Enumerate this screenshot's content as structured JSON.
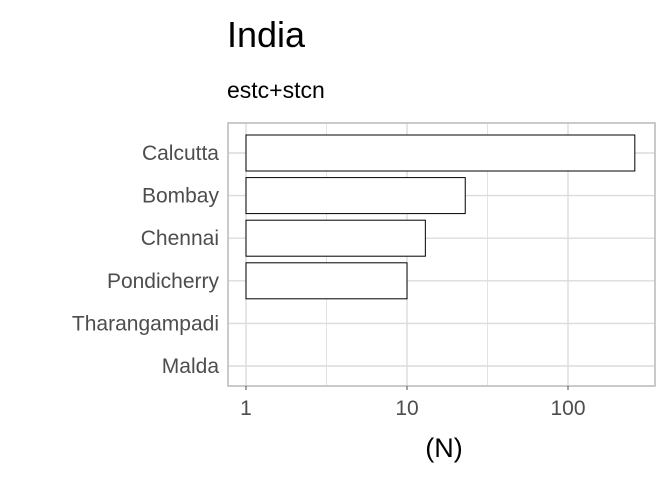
{
  "chart_data": {
    "type": "bar",
    "orientation": "horizontal",
    "title": "India",
    "subtitle": "estc+stcn",
    "xlabel": "(N)",
    "ylabel": "",
    "x_scale": "log10",
    "xlim": [
      0.8,
      320
    ],
    "x_ticks": [
      "1",
      "10",
      "100"
    ],
    "x_tick_values": [
      1,
      10,
      100
    ],
    "categories": [
      "Calcutta",
      "Bombay",
      "Chennai",
      "Pondicherry",
      "Tharangampadi",
      "Malda"
    ],
    "values": [
      260,
      23,
      13,
      10,
      1,
      1
    ],
    "bar_fill": "#ffffff",
    "bar_stroke": "#000000",
    "grid": true,
    "grid_color": "#dcdcdc",
    "panel_border_color": "#bdbdbd",
    "legend": "none"
  }
}
